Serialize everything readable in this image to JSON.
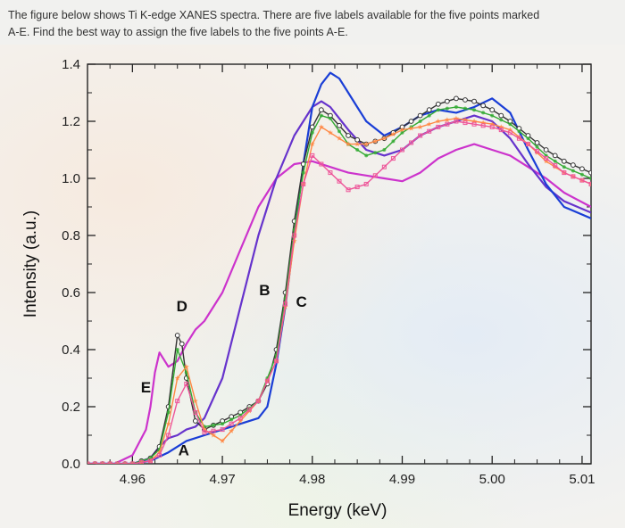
{
  "question": {
    "line1": "The figure below shows Ti K-edge XANES spectra. There are five labels available for the five points marked",
    "line2": "A-E. Find the best way to assign the five labels to the five points A-E."
  },
  "chart_data": {
    "type": "line",
    "title": "",
    "xlabel": "Energy (keV)",
    "ylabel": "Intensity (a.u.)",
    "xlim": [
      4.955,
      5.011
    ],
    "ylim": [
      0.0,
      1.4
    ],
    "x_ticks": [
      "4.96",
      "4.97",
      "4.98",
      "4.99",
      "5.00",
      "5.01"
    ],
    "y_ticks": [
      "0.0",
      "0.2",
      "0.4",
      "0.6",
      "0.8",
      "1.0",
      "1.2",
      "1.4"
    ],
    "grid": false,
    "annotations": [
      {
        "text": "E",
        "x": 4.9615,
        "y": 0.25
      },
      {
        "text": "D",
        "x": 4.9655,
        "y": 0.535
      },
      {
        "text": "A",
        "x": 4.9657,
        "y": 0.03
      },
      {
        "text": "B",
        "x": 4.9747,
        "y": 0.59
      },
      {
        "text": "C",
        "x": 4.9788,
        "y": 0.55
      }
    ],
    "series": [
      {
        "color": "#cc33cc",
        "marker": "none",
        "x": [
          4.955,
          4.958,
          4.96,
          4.9615,
          4.962,
          4.9625,
          4.963,
          4.964,
          4.965,
          4.966,
          4.967,
          4.968,
          4.97,
          4.972,
          4.974,
          4.976,
          4.978,
          4.98,
          4.982,
          4.984,
          4.986,
          4.988,
          4.99,
          4.992,
          4.994,
          4.996,
          4.998,
          5.0,
          5.002,
          5.004,
          5.006,
          5.008,
          5.011
        ],
        "y": [
          0.0,
          0.0,
          0.03,
          0.12,
          0.2,
          0.32,
          0.39,
          0.34,
          0.36,
          0.42,
          0.47,
          0.5,
          0.6,
          0.75,
          0.9,
          1.0,
          1.05,
          1.06,
          1.04,
          1.02,
          1.01,
          1.0,
          0.99,
          1.02,
          1.07,
          1.1,
          1.12,
          1.1,
          1.08,
          1.04,
          1.0,
          0.95,
          0.9
        ]
      },
      {
        "color": "#6633cc",
        "marker": "none",
        "x": [
          4.955,
          4.96,
          4.962,
          4.963,
          4.964,
          4.965,
          4.966,
          4.967,
          4.968,
          4.97,
          4.972,
          4.974,
          4.976,
          4.978,
          4.98,
          4.981,
          4.982,
          4.984,
          4.986,
          4.988,
          4.99,
          4.992,
          4.994,
          4.996,
          4.998,
          5.0,
          5.002,
          5.004,
          5.006,
          5.008,
          5.011
        ],
        "y": [
          0.0,
          0.0,
          0.02,
          0.06,
          0.09,
          0.1,
          0.12,
          0.13,
          0.16,
          0.3,
          0.55,
          0.8,
          1.0,
          1.15,
          1.25,
          1.27,
          1.25,
          1.17,
          1.1,
          1.08,
          1.1,
          1.15,
          1.18,
          1.2,
          1.22,
          1.2,
          1.14,
          1.05,
          0.97,
          0.92,
          0.88
        ]
      },
      {
        "color": "#1a3ed6",
        "marker": "none",
        "x": [
          4.955,
          4.96,
          4.962,
          4.964,
          4.966,
          4.968,
          4.97,
          4.972,
          4.974,
          4.975,
          4.976,
          4.977,
          4.978,
          4.979,
          4.98,
          4.981,
          4.982,
          4.983,
          4.984,
          4.985,
          4.986,
          4.988,
          4.99,
          4.992,
          4.994,
          4.996,
          4.998,
          5.0,
          5.002,
          5.004,
          5.006,
          5.008,
          5.011
        ],
        "y": [
          0.0,
          0.0,
          0.01,
          0.04,
          0.08,
          0.1,
          0.12,
          0.14,
          0.16,
          0.2,
          0.35,
          0.55,
          0.8,
          1.05,
          1.25,
          1.33,
          1.37,
          1.35,
          1.3,
          1.25,
          1.2,
          1.15,
          1.18,
          1.22,
          1.24,
          1.23,
          1.25,
          1.28,
          1.23,
          1.1,
          0.98,
          0.9,
          0.86
        ]
      },
      {
        "color": "#333333",
        "marker": "circle",
        "x": [
          4.955,
          4.96,
          4.962,
          4.963,
          4.964,
          4.965,
          4.9655,
          4.966,
          4.967,
          4.968,
          4.97,
          4.972,
          4.974,
          4.975,
          4.976,
          4.977,
          4.978,
          4.979,
          4.98,
          4.981,
          4.982,
          4.984,
          4.986,
          4.988,
          4.99,
          4.992,
          4.994,
          4.996,
          4.998,
          5.0,
          5.002,
          5.004,
          5.006,
          5.008,
          5.011
        ],
        "y": [
          0.0,
          0.0,
          0.02,
          0.06,
          0.2,
          0.45,
          0.42,
          0.3,
          0.15,
          0.12,
          0.15,
          0.18,
          0.22,
          0.28,
          0.4,
          0.6,
          0.85,
          1.05,
          1.18,
          1.24,
          1.22,
          1.15,
          1.12,
          1.14,
          1.18,
          1.22,
          1.26,
          1.28,
          1.27,
          1.24,
          1.2,
          1.15,
          1.1,
          1.06,
          1.02
        ]
      },
      {
        "color": "#33aa33",
        "marker": "dot",
        "x": [
          4.955,
          4.96,
          4.962,
          4.963,
          4.964,
          4.965,
          4.966,
          4.967,
          4.968,
          4.97,
          4.972,
          4.974,
          4.976,
          4.977,
          4.978,
          4.979,
          4.98,
          4.981,
          4.982,
          4.984,
          4.986,
          4.988,
          4.99,
          4.992,
          4.994,
          4.996,
          4.998,
          5.0,
          5.002,
          5.004,
          5.006,
          5.008,
          5.011
        ],
        "y": [
          0.0,
          0.0,
          0.02,
          0.05,
          0.18,
          0.4,
          0.32,
          0.18,
          0.13,
          0.14,
          0.17,
          0.22,
          0.38,
          0.58,
          0.82,
          1.02,
          1.16,
          1.22,
          1.21,
          1.12,
          1.08,
          1.1,
          1.16,
          1.2,
          1.24,
          1.25,
          1.24,
          1.22,
          1.19,
          1.14,
          1.08,
          1.04,
          1.0
        ]
      },
      {
        "color": "#ff8844",
        "marker": "star",
        "x": [
          4.955,
          4.96,
          4.962,
          4.963,
          4.964,
          4.965,
          4.966,
          4.967,
          4.968,
          4.97,
          4.972,
          4.974,
          4.976,
          4.977,
          4.978,
          4.979,
          4.98,
          4.981,
          4.982,
          4.984,
          4.986,
          4.988,
          4.99,
          4.992,
          4.994,
          4.996,
          4.998,
          5.0,
          5.002,
          5.004,
          5.006,
          5.008,
          5.011
        ],
        "y": [
          0.0,
          0.0,
          0.01,
          0.04,
          0.14,
          0.3,
          0.34,
          0.22,
          0.12,
          0.08,
          0.15,
          0.22,
          0.36,
          0.55,
          0.78,
          0.98,
          1.12,
          1.18,
          1.16,
          1.12,
          1.12,
          1.14,
          1.17,
          1.18,
          1.2,
          1.21,
          1.2,
          1.19,
          1.17,
          1.12,
          1.06,
          1.02,
          0.98
        ]
      },
      {
        "color": "#ee5599",
        "marker": "square",
        "x": [
          4.955,
          4.96,
          4.962,
          4.963,
          4.964,
          4.965,
          4.966,
          4.967,
          4.968,
          4.97,
          4.972,
          4.974,
          4.976,
          4.977,
          4.978,
          4.979,
          4.98,
          4.981,
          4.982,
          4.984,
          4.986,
          4.988,
          4.99,
          4.992,
          4.994,
          4.996,
          4.998,
          5.0,
          5.002,
          5.004,
          5.006,
          5.008,
          5.011
        ],
        "y": [
          0.0,
          0.0,
          0.01,
          0.03,
          0.1,
          0.22,
          0.28,
          0.18,
          0.11,
          0.12,
          0.16,
          0.22,
          0.36,
          0.56,
          0.8,
          0.98,
          1.08,
          1.05,
          1.02,
          0.96,
          0.98,
          1.04,
          1.1,
          1.15,
          1.18,
          1.2,
          1.19,
          1.18,
          1.16,
          1.12,
          1.07,
          1.02,
          0.98
        ]
      }
    ]
  }
}
